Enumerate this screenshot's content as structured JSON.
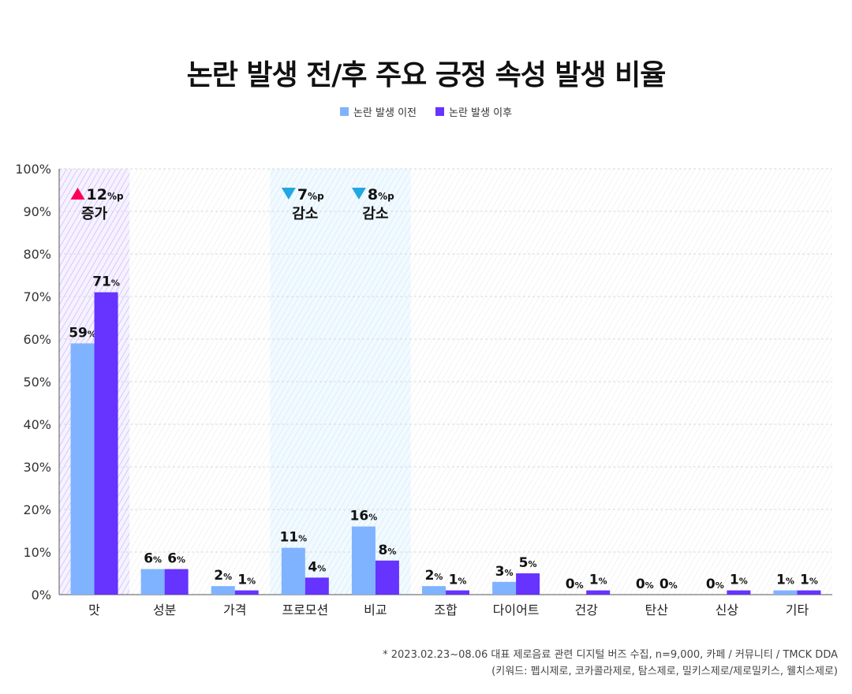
{
  "chart_data": {
    "type": "bar",
    "title": "논란 발생 전/후 주요 긍정 속성 발생 비율",
    "categories": [
      "맛",
      "성분",
      "가격",
      "프로모션",
      "비교",
      "조합",
      "다이어트",
      "건강",
      "탄산",
      "신상",
      "기타"
    ],
    "series": [
      {
        "name": "논란 발생 이전",
        "color": "#7fb3ff",
        "values": [
          59,
          6,
          2,
          11,
          16,
          2,
          3,
          0,
          0,
          0,
          1
        ]
      },
      {
        "name": "논란 발생 이후",
        "color": "#6633ff",
        "values": [
          71,
          6,
          1,
          4,
          8,
          1,
          5,
          1,
          0,
          1,
          1
        ]
      }
    ],
    "value_suffix": "%",
    "ylim": [
      0,
      100
    ],
    "yticks": [
      "0%",
      "10%",
      "20%",
      "30%",
      "40%",
      "50%",
      "60%",
      "70%",
      "80%",
      "90%",
      "100%"
    ],
    "grid": true,
    "legend_position": "top",
    "annotations": [
      {
        "category": "맛",
        "direction": "up",
        "value": "12",
        "unit": "%p",
        "text": "증가",
        "marker_color": "#ff0055",
        "highlight_color": "#b9a2ff"
      },
      {
        "category": "프로모션",
        "direction": "down",
        "value": "7",
        "unit": "%p",
        "text": "감소",
        "marker_color": "#22a7e0",
        "highlight_color": "#bfe6fb"
      },
      {
        "category": "비교",
        "direction": "down",
        "value": "8",
        "unit": "%p",
        "text": "감소",
        "marker_color": "#22a7e0",
        "highlight_color": "#bfe6fb"
      }
    ]
  },
  "footnote": {
    "line1": "* 2023.02.23~08.06 대표 제로음료 관련 디지털 버즈 수집, n=9,000, 카페 / 커뮤니티 / TMCK DDA",
    "line2": "(키워드: 펩시제로, 코카콜라제로, 탐스제로, 밀키스제로/제로밀키스, 웰치스제로)"
  }
}
